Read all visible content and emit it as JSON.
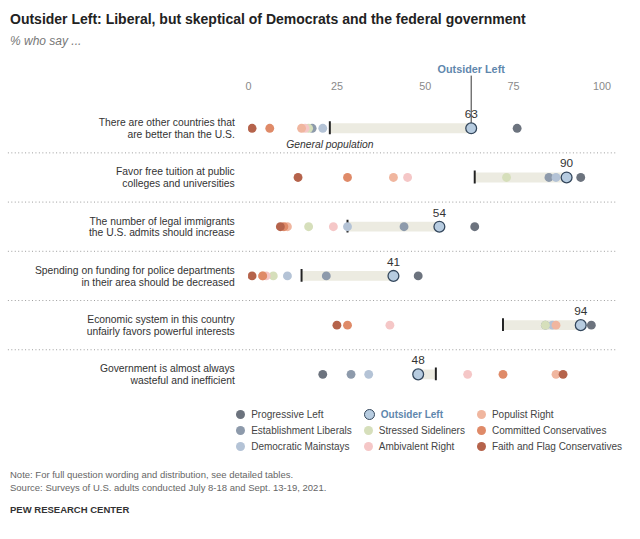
{
  "chart_data": {
    "type": "dot",
    "title": "Outsider Left: Liberal, but skeptical of Democrats and the federal government",
    "subtitle": "% who say ...",
    "categories": [
      "There are other countries that\nare better than the U.S.",
      "Favor free tuition at public\ncolleges and universities",
      "The number of legal immigrants\nthe U.S. admits should increase",
      "Spending on funding for police departments\nin their area should be decreased",
      "Economic system in this country\nunfairly favors powerful interests",
      "Government is almost always\nwasteful and inefficient"
    ],
    "series": [
      {
        "name": "Progressive Left",
        "color": "#6c737e",
        "marker": "circle",
        "values": [
          76,
          94,
          64,
          48,
          97,
          21
        ]
      },
      {
        "name": "Establishment Liberals",
        "color": "#8d9aab",
        "marker": "circle",
        "values": [
          18,
          85,
          44,
          22,
          84,
          29
        ]
      },
      {
        "name": "Democratic Mainstays",
        "color": "#b4c3d6",
        "marker": "circle",
        "values": [
          21,
          87,
          28,
          11,
          86,
          34
        ]
      },
      {
        "name": "Outsider Left",
        "color": "#b7cce0",
        "marker": "circle_outlined",
        "data_labels": true,
        "values": [
          63,
          90,
          54,
          41,
          94,
          48
        ]
      },
      {
        "name": "Stressed Sideliners",
        "color": "#d6dfbb",
        "marker": "circle",
        "values": [
          17,
          73,
          17,
          7,
          84,
          48
        ]
      },
      {
        "name": "Ambivalent Right",
        "color": "#f5c7c7",
        "marker": "circle",
        "values": [
          16,
          45,
          24,
          5,
          40,
          62
        ]
      },
      {
        "name": "Populist Right",
        "color": "#f0b69f",
        "marker": "circle",
        "values": [
          15,
          41,
          11,
          4,
          87,
          87
        ]
      },
      {
        "name": "Committed Conservatives",
        "color": "#df8a68",
        "marker": "circle",
        "values": [
          6,
          28,
          10,
          4,
          28,
          72
        ]
      },
      {
        "name": "Faith and Flag Conservatives",
        "color": "#b5634b",
        "marker": "circle",
        "values": [
          1,
          14,
          9,
          1,
          25,
          89
        ]
      },
      {
        "name": "General population",
        "color": "#222222",
        "marker": "tick",
        "values": [
          23,
          64,
          28,
          15,
          72,
          53
        ]
      }
    ],
    "xlim": [
      0,
      100
    ],
    "xticks": [
      0,
      25,
      50,
      75,
      100
    ],
    "grid": false,
    "note": "Note: For full question wording and distribution, see detailed tables.",
    "source": "Source: Surveys of U.S. adults conducted July 8-18 and Sept. 13-19, 2021.",
    "credit": "PEW RESEARCH CENTER"
  }
}
